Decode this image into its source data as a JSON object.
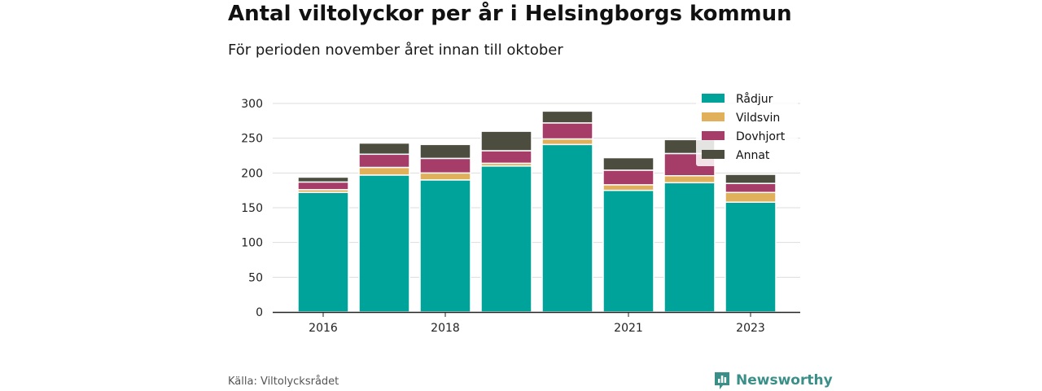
{
  "title": "Antal viltolyckor per år i Helsingborgs kommun",
  "subtitle": "För perioden november året innan till oktober",
  "source": "Källa: Viltolycksrådet",
  "brand": {
    "name": "Newsworthy",
    "icon": "newsworthy-logo-icon",
    "color": "#3a8f88"
  },
  "chart_data": {
    "type": "bar",
    "stacked": true,
    "categories": [
      "2016",
      "2017",
      "2018",
      "2019",
      "2020",
      "2021",
      "2022",
      "2023"
    ],
    "x_tick_labels": [
      "2016",
      "",
      "2018",
      "",
      "",
      "2021",
      "",
      "2023"
    ],
    "series": [
      {
        "name": "Rådjur",
        "color": "#00a39a",
        "values": [
          172,
          197,
          190,
          210,
          241,
          175,
          186,
          158
        ]
      },
      {
        "name": "Vildsvin",
        "color": "#e0b15a",
        "values": [
          4,
          11,
          10,
          4,
          8,
          8,
          10,
          14
        ]
      },
      {
        "name": "Dovhjort",
        "color": "#a63c68",
        "values": [
          11,
          19,
          21,
          18,
          23,
          21,
          32,
          13
        ]
      },
      {
        "name": "Annat",
        "color": "#4d4d3f",
        "values": [
          7,
          16,
          20,
          28,
          17,
          18,
          20,
          13
        ]
      }
    ],
    "ylim": [
      0,
      300
    ],
    "yticks": [
      0,
      50,
      100,
      150,
      200,
      250,
      300
    ],
    "grid": true,
    "legend_position": "top-right"
  }
}
